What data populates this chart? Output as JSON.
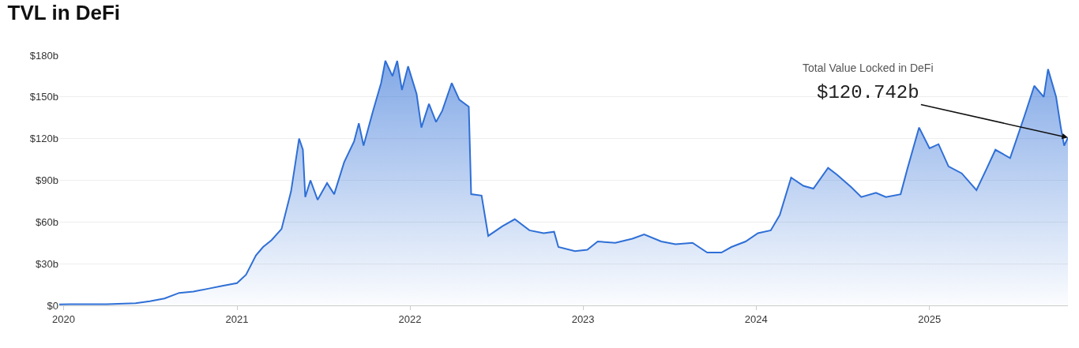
{
  "chart_data": {
    "type": "area",
    "title": "TVL in DeFi",
    "x": [
      "2019-12-23",
      "2020-01-15",
      "2020-04-01",
      "2020-06-01",
      "2020-07-01",
      "2020-08-01",
      "2020-09-01",
      "2020-10-01",
      "2020-11-01",
      "2020-12-01",
      "2021-01-01",
      "2021-01-20",
      "2021-02-10",
      "2021-02-25",
      "2021-03-15",
      "2021-04-05",
      "2021-04-25",
      "2021-05-12",
      "2021-05-20",
      "2021-05-25",
      "2021-06-05",
      "2021-06-20",
      "2021-07-10",
      "2021-07-25",
      "2021-08-15",
      "2021-09-05",
      "2021-09-15",
      "2021-09-25",
      "2021-10-15",
      "2021-11-01",
      "2021-11-10",
      "2021-11-25",
      "2021-12-05",
      "2021-12-15",
      "2021-12-28",
      "2022-01-15",
      "2022-01-25",
      "2022-02-10",
      "2022-02-25",
      "2022-03-10",
      "2022-03-30",
      "2022-04-15",
      "2022-05-05",
      "2022-05-10",
      "2022-06-01",
      "2022-06-15",
      "2022-07-15",
      "2022-08-10",
      "2022-09-10",
      "2022-10-10",
      "2022-11-01",
      "2022-11-10",
      "2022-12-15",
      "2023-01-10",
      "2023-02-01",
      "2023-03-10",
      "2023-04-15",
      "2023-05-10",
      "2023-06-15",
      "2023-07-15",
      "2023-08-20",
      "2023-09-20",
      "2023-10-20",
      "2023-11-10",
      "2023-12-10",
      "2024-01-05",
      "2024-02-01",
      "2024-02-20",
      "2024-03-15",
      "2024-04-10",
      "2024-05-01",
      "2024-06-01",
      "2024-06-20",
      "2024-07-20",
      "2024-08-10",
      "2024-09-10",
      "2024-10-01",
      "2024-11-01",
      "2024-11-15",
      "2024-12-10",
      "2025-01-01",
      "2025-01-20",
      "2025-02-10",
      "2025-03-10",
      "2025-04-10",
      "2025-05-01",
      "2025-05-20",
      "2025-06-20",
      "2025-07-20",
      "2025-08-10",
      "2025-08-30",
      "2025-09-08",
      "2025-09-25",
      "2025-10-05",
      "2025-10-12",
      "2025-10-20"
    ],
    "series": [
      {
        "color": "#2f6fd6",
        "values": [
          0.7,
          0.8,
          0.8,
          1.5,
          3,
          5,
          9,
          10,
          12,
          14,
          16,
          22,
          36,
          42,
          47,
          55,
          82,
          120,
          112,
          78,
          90,
          76,
          88,
          80,
          103,
          118,
          131,
          115,
          140,
          160,
          176,
          165,
          176,
          155,
          172,
          152,
          128,
          145,
          132,
          140,
          160,
          148,
          143,
          80,
          79,
          50,
          57,
          62,
          54,
          52,
          53,
          42,
          39,
          40,
          46,
          45,
          48,
          51,
          46,
          44,
          45,
          38,
          38,
          42,
          46,
          52,
          54,
          65,
          92,
          86,
          84,
          99,
          94,
          85,
          78,
          81,
          78,
          80,
          98,
          128,
          113,
          116,
          100,
          95,
          83,
          98,
          112,
          106,
          136,
          158,
          150,
          170,
          150,
          128,
          115,
          120.742
        ]
      }
    ],
    "annotations": [
      "Total Value Locked in DeFi",
      {
        "text": "$120.742b",
        "x": "2025-10-20",
        "y": 120.742
      }
    ],
    "xlim": [
      "2019-12-23",
      "2025-10-20"
    ],
    "xticks": [
      {
        "value": "2020-01-01",
        "label": "2020"
      },
      {
        "value": "2021-01-01",
        "label": "2021"
      },
      {
        "value": "2022-01-01",
        "label": "2022"
      },
      {
        "value": "2023-01-01",
        "label": "2023"
      },
      {
        "value": "2024-01-01",
        "label": "2024"
      },
      {
        "value": "2025-01-01",
        "label": "2025"
      }
    ],
    "ylim": [
      0,
      180
    ],
    "yticks": [
      {
        "value": 0,
        "label": "$0"
      },
      {
        "value": 30,
        "label": "$30b"
      },
      {
        "value": 60,
        "label": "$60b"
      },
      {
        "value": 90,
        "label": "$90b"
      },
      {
        "value": 120,
        "label": "$120b"
      },
      {
        "value": 150,
        "label": "$150b"
      },
      {
        "value": 180,
        "label": "$180b"
      }
    ],
    "grid": "y"
  }
}
